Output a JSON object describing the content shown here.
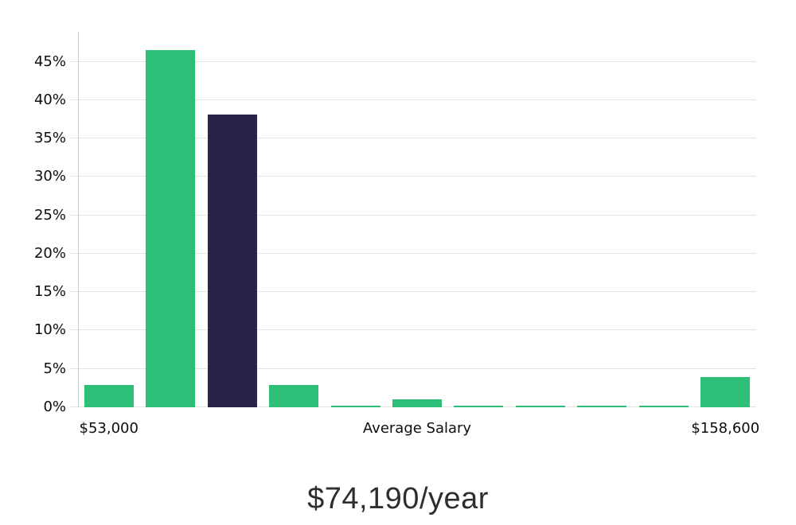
{
  "chart_data": {
    "type": "bar",
    "title": "$74,190/year",
    "xlabel": "",
    "ylabel": "",
    "ylim": [
      0,
      48.9
    ],
    "grid": true,
    "y_ticks": [
      {
        "value": 0,
        "label": "0%"
      },
      {
        "value": 5,
        "label": "5%"
      },
      {
        "value": 10,
        "label": "10%"
      },
      {
        "value": 15,
        "label": "15%"
      },
      {
        "value": 20,
        "label": "20%"
      },
      {
        "value": 25,
        "label": "25%"
      },
      {
        "value": 30,
        "label": "30%"
      },
      {
        "value": 35,
        "label": "35%"
      },
      {
        "value": 40,
        "label": "40%"
      },
      {
        "value": 45,
        "label": "45%"
      }
    ],
    "x_tick_labels": [
      {
        "label": "$53,000",
        "bar_index": 0
      },
      {
        "label": "Average Salary",
        "bar_index": 5
      },
      {
        "label": "$158,600",
        "bar_index": 10
      }
    ],
    "values": [
      2.9,
      46.5,
      38.1,
      2.9,
      0.25,
      1.0,
      0.25,
      0.25,
      0.25,
      0.25,
      3.9
    ],
    "bar_roles": [
      "normal",
      "normal",
      "highlight",
      "normal",
      "normal",
      "normal",
      "normal",
      "normal",
      "normal",
      "normal",
      "normal"
    ],
    "colors": {
      "normal": "#2dbe78",
      "highlight": "#272348",
      "gridline": "#e3e3e3",
      "axis_line": "#cfcfcf",
      "tick_text": "#0d0d0d",
      "title_text": "#2e2e2e"
    },
    "legend": null
  }
}
